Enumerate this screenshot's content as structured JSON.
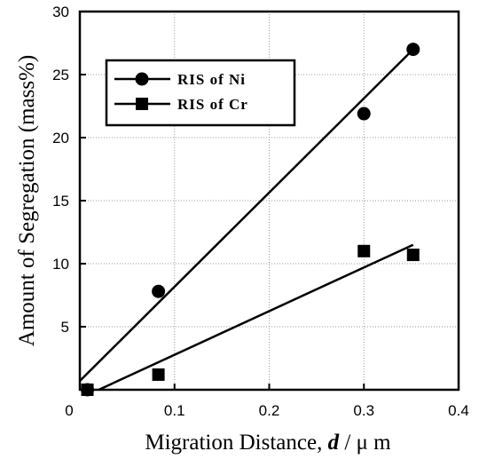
{
  "chart_data": {
    "type": "scatter",
    "xlabel_prefix": "Migration Distance,",
    "xlabel_var": "d",
    "xlabel_unit": "/ μ m",
    "ylabel": "Amount of Segregation (mass%)",
    "xlim": [
      0,
      0.4
    ],
    "ylim": [
      0,
      30
    ],
    "x_ticks": [
      "0",
      "0.1",
      "0.2",
      "0.3",
      "0.4"
    ],
    "y_ticks": [
      "5",
      "10",
      "15",
      "20",
      "25",
      "30"
    ],
    "grid": true,
    "legend_position": "top-left",
    "series": [
      {
        "name": "RIS of Ni",
        "marker": "circle",
        "points": [
          [
            0.008,
            0
          ],
          [
            0.083,
            7.8
          ],
          [
            0.3,
            21.9
          ],
          [
            0.352,
            27.0
          ]
        ],
        "fit_line": [
          [
            0,
            0.7
          ],
          [
            0.352,
            27.0
          ]
        ]
      },
      {
        "name": "RIS of Cr",
        "marker": "square",
        "points": [
          [
            0.008,
            0
          ],
          [
            0.083,
            1.2
          ],
          [
            0.3,
            11.0
          ],
          [
            0.352,
            10.7
          ]
        ],
        "fit_line": [
          [
            0.02,
            0
          ],
          [
            0.352,
            11.5
          ]
        ]
      }
    ]
  }
}
